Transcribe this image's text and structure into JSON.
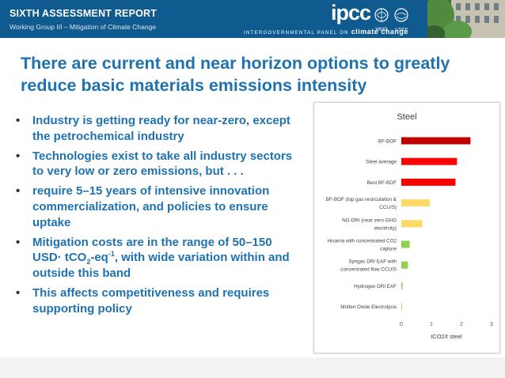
{
  "header": {
    "report_title": "SIXTH ASSESSMENT REPORT",
    "subtitle": "Working Group III – Mitigation of Climate Change",
    "ipcc_logo_text": "ipcc",
    "panel_prefix": "INTERGOVERNMENTAL PANEL ON",
    "panel_emphasis": "climate change",
    "wmo_label": "WMO",
    "unep_label": "UNEP"
  },
  "slide": {
    "title": "There are current and near horizon options to greatly reduce basic materials emissions intensity",
    "bullets": [
      {
        "text": "Industry is getting ready for near-zero, except the petrochemical industry"
      },
      {
        "text": "Technologies exist to take all industry sectors to very low or zero emissions, but . . ."
      },
      {
        "text": "require 5–15 years of intensive innovation commercialization, and policies to ensure uptake"
      },
      {
        "pre": "Mitigation costs are in the range of 50–150 USD· tCO",
        "sub": "2",
        "mid": "-eq",
        "sup": "-1",
        "post": ", with wide variation within and outside this band"
      },
      {
        "text": "This affects competitiveness and requires supporting policy"
      }
    ],
    "bullet_char": "•"
  },
  "chart_data": {
    "type": "bar",
    "orientation": "horizontal",
    "title": "Steel",
    "xlabel": "tCO2/t steel",
    "ylabel": "",
    "xlim": [
      0,
      3
    ],
    "xticks": [
      "0",
      "1",
      "2",
      "3"
    ],
    "grid": false,
    "categories": [
      [
        "BF-BOF"
      ],
      [
        "Steel average"
      ],
      [
        "Best BF-BOF"
      ],
      [
        "BF-BOF (top gas recirculation &",
        "CCU/S)"
      ],
      [
        "NG-DRI (near zero GHG",
        "electricity)"
      ],
      [
        "Hisarna with concentrated CO2",
        "capture"
      ],
      [
        "Syngas DRI EAF with",
        "concentrated flow CCU/S"
      ],
      [
        "Hydrogen DRI EAF"
      ],
      [
        "Molten Oxide Electrolysis"
      ]
    ],
    "values": [
      2.3,
      1.85,
      1.8,
      0.95,
      0.7,
      0.28,
      0.22,
      0.04,
      0.02
    ],
    "colors": [
      "#c00000",
      "#ff0000",
      "#ff0000",
      "#ffd966",
      "#ffd966",
      "#92d050",
      "#92d050",
      "#92d050",
      "#92d050"
    ]
  }
}
